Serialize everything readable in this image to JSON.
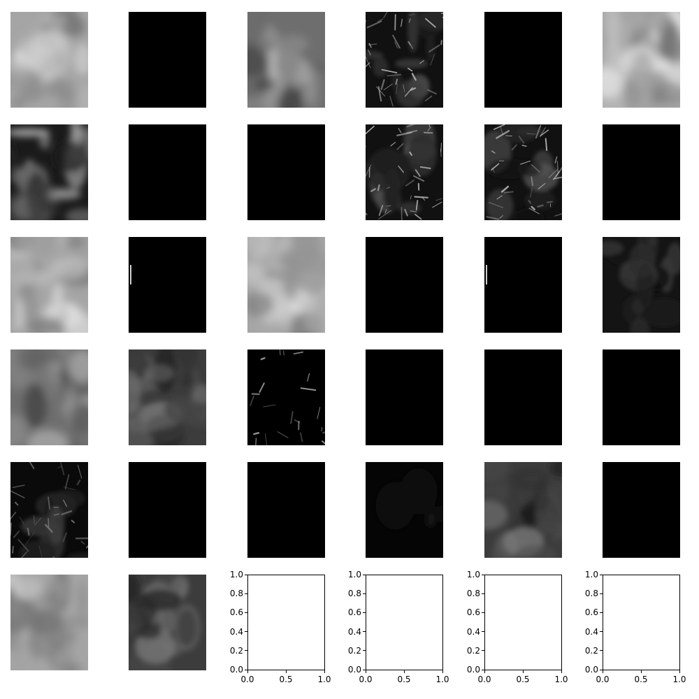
{
  "figure": {
    "rows": 6,
    "cols": 6,
    "map_rows": [
      [
        "gray-bright",
        "black",
        "gray-mid",
        "edges",
        "black",
        "gray-bright"
      ],
      [
        "gray-contrast",
        "black",
        "black",
        "edges",
        "edges",
        "black"
      ],
      [
        "gray-bright",
        "black-speck",
        "gray-bright",
        "black",
        "black-speck",
        "dark-noise"
      ],
      [
        "gray-mid",
        "gray-dark",
        "sparse-edges",
        "black",
        "black",
        "black"
      ],
      [
        "dark-edges",
        "black",
        "black",
        "near-black",
        "gray-dark",
        "black"
      ],
      [
        "gray-bright",
        "gray-dark",
        "empty",
        "empty",
        "empty",
        "empty"
      ]
    ]
  },
  "empty_axes": {
    "x_ticks": [
      "0.0",
      "0.5",
      "1.0"
    ],
    "y_ticks": [
      "0.0",
      "0.2",
      "0.4",
      "0.6",
      "0.8",
      "1.0"
    ]
  },
  "chart_data": {
    "type": "heatmap",
    "description_grid": "6x6 grid of grayscale feature maps; last 4 panels are empty axes",
    "empty_axes_xlim": [
      0,
      1
    ],
    "empty_axes_ylim": [
      0,
      1
    ],
    "empty_axes_xticks": [
      0.0,
      0.5,
      1.0
    ],
    "empty_axes_yticks": [
      0.0,
      0.2,
      0.4,
      0.6,
      0.8,
      1.0
    ],
    "grid": false
  }
}
